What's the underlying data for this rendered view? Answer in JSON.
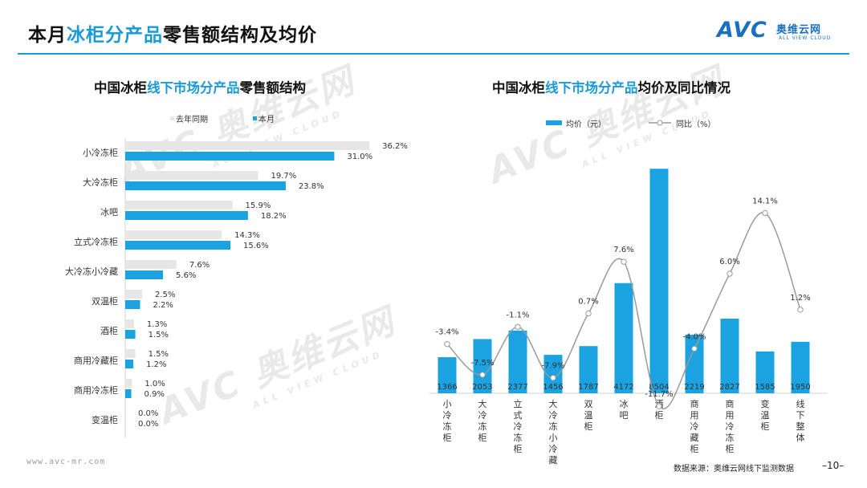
{
  "header": {
    "title_pre": "本月",
    "title_hl": "冰柜分产品",
    "title_post": "零售额结构及均价",
    "logo_text": "AVC",
    "logo_cn": "奥维云网",
    "logo_en": "ALL VIEW CLOUD"
  },
  "watermark": {
    "big": "AVC 奥维云网",
    "small": "ALL VIEW CLOUD"
  },
  "left_chart": {
    "title_pre": "中国冰柜",
    "title_hl": "线下市场分产品",
    "title_post": "零售额结构"
  },
  "right_chart": {
    "title_pre": "中国冰柜",
    "title_hl": "线下市场分产品",
    "title_post": "均价及同比情况"
  },
  "footer": {
    "website": "www.avc-mr.com",
    "source": "数据来源：奥维云网线下监测数据",
    "page": "–10–"
  },
  "colors": {
    "accent": "#1aa3e0",
    "grey_bar": "#e6e6e6",
    "line": "#9a9a9a",
    "title_blue": "#1a9ad6"
  },
  "chart_data": [
    {
      "type": "bar",
      "orientation": "horizontal",
      "categories": [
        "小冷冻柜",
        "大冷冻柜",
        "冰吧",
        "立式冷冻柜",
        "大冷冻小冷藏",
        "双温柜",
        "酒柜",
        "商用冷藏柜",
        "商用冷冻柜",
        "变温柜"
      ],
      "series": [
        {
          "name": "去年同期",
          "values": [
            36.2,
            19.7,
            15.9,
            14.3,
            7.6,
            2.5,
            1.3,
            1.5,
            1.0,
            0.0
          ],
          "labels": [
            "36.2%",
            "19.7%",
            "15.9%",
            "14.3%",
            "7.6%",
            "2.5%",
            "1.3%",
            "1.5%",
            "1.0%",
            "0.0%"
          ],
          "color": "#e6e6e6"
        },
        {
          "name": "本月",
          "values": [
            31.0,
            23.8,
            18.2,
            15.6,
            5.6,
            2.2,
            1.5,
            1.2,
            0.9,
            0.0
          ],
          "labels": [
            "31.0%",
            "23.8%",
            "18.2%",
            "15.6%",
            "5.6%",
            "2.2%",
            "1.5%",
            "1.2%",
            "0.9%",
            "0.0%"
          ],
          "color": "#1aa3e0"
        }
      ],
      "legend": "top"
    },
    {
      "type": "bar",
      "categories": [
        "小冷冻柜",
        "大冷冻柜",
        "立式冷冻柜",
        "大冷冻小冷藏",
        "双温柜",
        "冰吧",
        "酒柜",
        "商用冷藏柜",
        "商用冷冻柜",
        "变温柜",
        "线下整体"
      ],
      "series": [
        {
          "name": "均价（元）",
          "type": "bar",
          "values": [
            1366,
            2053,
            2377,
            1456,
            1787,
            4172,
            8504,
            2219,
            2827,
            1585,
            1950
          ],
          "color": "#1aa3e0"
        },
        {
          "name": "同比（%）",
          "type": "line",
          "values": [
            -3.4,
            -7.5,
            -1.1,
            -7.9,
            0.7,
            7.6,
            -11.7,
            -4.0,
            6.0,
            14.1,
            1.2
          ],
          "labels": [
            "-3.4%",
            "-7.5%",
            "-1.1%",
            "-7.9%",
            "0.7%",
            "7.6%",
            "-11.7%",
            "-4.0%",
            "6.0%",
            "14.1%",
            "1.2%"
          ],
          "color": "#9a9a9a"
        }
      ],
      "legend": "top"
    }
  ]
}
